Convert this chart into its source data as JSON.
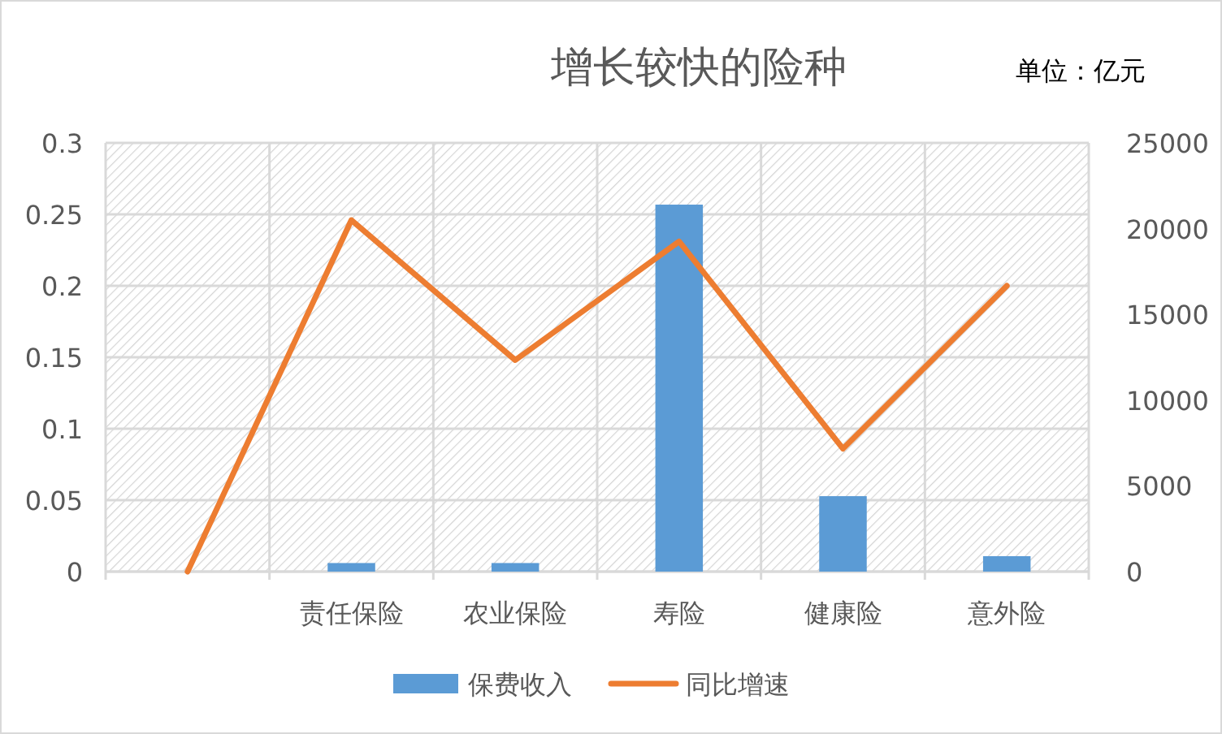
{
  "chart_data": {
    "type": "bar",
    "title": "增长较快的险种",
    "annotations": [
      "单位：亿元"
    ],
    "categories": [
      null,
      "责任保险",
      "农业保险",
      "寿险",
      "健康险",
      "意外险"
    ],
    "series": [
      {
        "name": "保费收入",
        "axis": "y2",
        "color": "#5b9bd5",
        "values": [
          null,
          500,
          500,
          21400,
          4400,
          900
        ]
      },
      {
        "name": "同比增速",
        "type": "line",
        "color": "#ed7d31",
        "values": [
          0,
          0.246,
          0.148,
          0.231,
          0.086,
          0.2
        ]
      }
    ],
    "ylim": [
      0,
      0.3
    ],
    "yticks": [
      0,
      0.05,
      0.1,
      0.15,
      0.2,
      0.25,
      0.3
    ],
    "y2lim": [
      0,
      25000
    ],
    "y2ticks": [
      0,
      5000,
      10000,
      15000,
      20000,
      25000
    ],
    "grid": true,
    "legend": "bottom",
    "marker": "none",
    "line_style": "solid"
  }
}
